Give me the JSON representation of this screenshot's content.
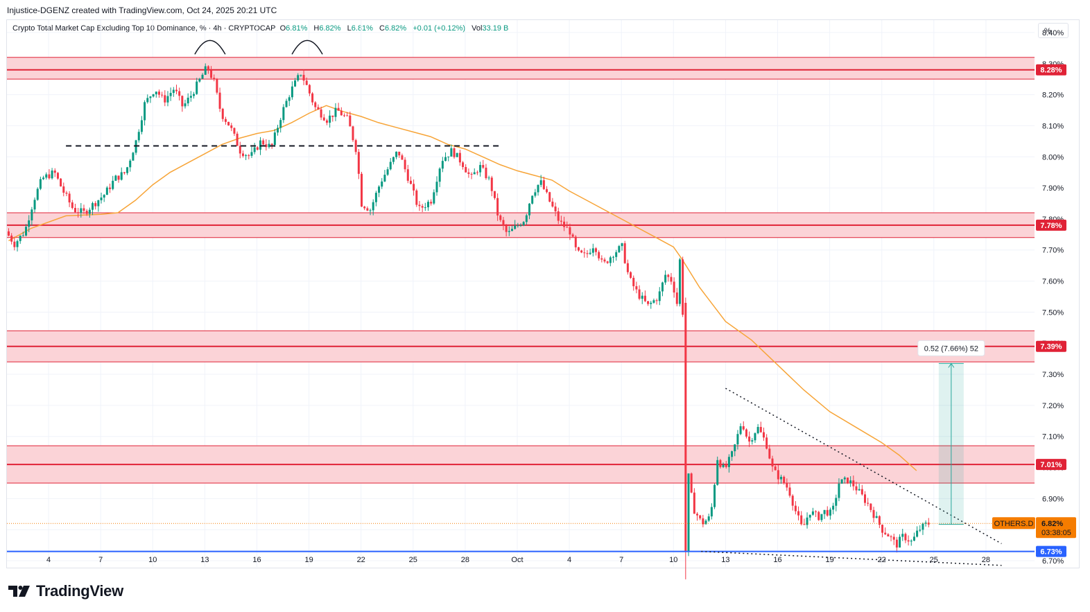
{
  "header": {
    "attribution": "Injustice-DGENZ created with TradingView.com, Oct 24, 2025 20:21 UTC"
  },
  "legend": {
    "symbol_title": "Crypto Total Market Cap Excluding Top 10 Dominance, % · 4h · CRYPTOCAP",
    "o_label": "O",
    "o_value": "6.81%",
    "h_label": "H",
    "h_value": "6.82%",
    "l_label": "L",
    "l_value": "6.81%",
    "c_label": "C",
    "c_value": "6.82%",
    "change": "+0.01 (+0.12%)",
    "vol_label": "Vol",
    "vol_value": "33.19 B"
  },
  "scale_unit": "%",
  "symbol_tag": "OTHERS.D",
  "last_price_label": "6.82%",
  "countdown": "03:38:05",
  "measure_label": "0.52 (7.66%) 52",
  "brand": "TradingView",
  "colors": {
    "up": "#089981",
    "down": "#f23645",
    "zone_fill": "#fbd3d7",
    "zone_line": "#e02236",
    "support": "#2962ff",
    "ma": "#f7a437",
    "measure": "#26a69a",
    "last_price": "#f57c00"
  },
  "chart_data": {
    "type": "candlestick",
    "timeframe": "4h",
    "y_axis": {
      "ticks": [
        "8.40%",
        "8.30%",
        "8.20%",
        "8.10%",
        "8.00%",
        "7.90%",
        "7.80%",
        "7.70%",
        "7.60%",
        "7.50%",
        "7.40%",
        "7.30%",
        "7.20%",
        "7.10%",
        "7.00%",
        "6.90%",
        "6.80%",
        "6.70%"
      ],
      "range": [
        6.68,
        8.44
      ]
    },
    "x_axis": {
      "ticks": [
        {
          "label": "4",
          "day": 4
        },
        {
          "label": "7",
          "day": 7
        },
        {
          "label": "10",
          "day": 10
        },
        {
          "label": "13",
          "day": 13
        },
        {
          "label": "16",
          "day": 16
        },
        {
          "label": "19",
          "day": 19
        },
        {
          "label": "22",
          "day": 22
        },
        {
          "label": "25",
          "day": 25
        },
        {
          "label": "28",
          "day": 28
        },
        {
          "label": "Oct",
          "day": 31
        },
        {
          "label": "4",
          "day": 34
        },
        {
          "label": "7",
          "day": 37
        },
        {
          "label": "10",
          "day": 40
        },
        {
          "label": "13",
          "day": 43
        },
        {
          "label": "16",
          "day": 46
        },
        {
          "label": "19",
          "day": 49
        },
        {
          "label": "22",
          "day": 52
        },
        {
          "label": "25",
          "day": 55
        },
        {
          "label": "28",
          "day": 58
        }
      ],
      "range_days": [
        1.6,
        60.8
      ]
    },
    "resistance_zones": [
      {
        "level": 8.28,
        "label": "8.28%",
        "top": 8.32,
        "bottom": 8.25
      },
      {
        "level": 7.78,
        "label": "7.78%",
        "top": 7.82,
        "bottom": 7.74
      },
      {
        "level": 7.39,
        "label": "7.39%",
        "top": 7.44,
        "bottom": 7.34
      },
      {
        "level": 7.01,
        "label": "7.01%",
        "top": 7.07,
        "bottom": 6.95
      }
    ],
    "support": {
      "level": 6.73,
      "label": "6.73%"
    },
    "last_price": 6.82,
    "neckline": {
      "from_day": 5,
      "to_day": 30,
      "level": 8.035
    },
    "triangle": {
      "upper": [
        [
          43.0,
          7.255
        ],
        [
          58.9,
          6.755
        ]
      ],
      "lower": [
        [
          41.6,
          6.73
        ],
        [
          58.9,
          6.685
        ]
      ]
    },
    "measure": {
      "day": 56.0,
      "from": 6.817,
      "to": 7.335,
      "label": "0.52 (7.66%) 52"
    },
    "moving_average": [
      [
        1.7,
        7.73
      ],
      [
        3,
        7.77
      ],
      [
        5,
        7.81
      ],
      [
        7,
        7.815
      ],
      [
        8,
        7.82
      ],
      [
        9,
        7.86
      ],
      [
        10,
        7.91
      ],
      [
        11,
        7.95
      ],
      [
        12,
        7.98
      ],
      [
        13,
        8.01
      ],
      [
        14,
        8.04
      ],
      [
        15,
        8.06
      ],
      [
        16,
        8.075
      ],
      [
        17,
        8.085
      ],
      [
        18,
        8.11
      ],
      [
        19,
        8.14
      ],
      [
        20,
        8.165
      ],
      [
        21,
        8.145
      ],
      [
        22,
        8.13
      ],
      [
        23,
        8.11
      ],
      [
        24,
        8.095
      ],
      [
        25,
        8.08
      ],
      [
        26,
        8.065
      ],
      [
        27,
        8.04
      ],
      [
        28,
        8.025
      ],
      [
        29,
        8.0
      ],
      [
        30,
        7.975
      ],
      [
        31,
        7.955
      ],
      [
        32,
        7.94
      ],
      [
        33,
        7.925
      ],
      [
        34,
        7.89
      ],
      [
        35,
        7.86
      ],
      [
        36,
        7.83
      ],
      [
        37,
        7.8
      ],
      [
        38,
        7.77
      ],
      [
        39,
        7.74
      ],
      [
        40,
        7.71
      ],
      [
        40.5,
        7.67
      ],
      [
        41.5,
        7.58
      ],
      [
        43,
        7.47
      ],
      [
        44.5,
        7.41
      ],
      [
        46,
        7.33
      ],
      [
        47.5,
        7.25
      ],
      [
        49,
        7.18
      ],
      [
        50.5,
        7.13
      ],
      [
        52,
        7.08
      ],
      [
        53,
        7.04
      ],
      [
        54,
        6.99
      ]
    ],
    "anchors": [
      [
        1.7,
        7.76
      ],
      [
        2.2,
        7.72
      ],
      [
        2.8,
        7.76
      ],
      [
        3.3,
        7.86
      ],
      [
        3.8,
        7.93
      ],
      [
        4.5,
        7.95
      ],
      [
        5.0,
        7.89
      ],
      [
        5.6,
        7.83
      ],
      [
        6.2,
        7.82
      ],
      [
        6.8,
        7.85
      ],
      [
        7.4,
        7.88
      ],
      [
        8.0,
        7.93
      ],
      [
        8.6,
        7.95
      ],
      [
        9.2,
        8.05
      ],
      [
        9.7,
        8.17
      ],
      [
        10.3,
        8.22
      ],
      [
        10.8,
        8.18
      ],
      [
        11.4,
        8.22
      ],
      [
        11.9,
        8.16
      ],
      [
        12.4,
        8.2
      ],
      [
        12.8,
        8.24
      ],
      [
        13.3,
        8.29
      ],
      [
        13.7,
        8.24
      ],
      [
        14.1,
        8.14
      ],
      [
        14.6,
        8.1
      ],
      [
        15.2,
        8.02
      ],
      [
        15.8,
        8.0
      ],
      [
        16.4,
        8.05
      ],
      [
        17.0,
        8.03
      ],
      [
        17.6,
        8.14
      ],
      [
        18.1,
        8.21
      ],
      [
        18.7,
        8.27
      ],
      [
        19.1,
        8.22
      ],
      [
        19.5,
        8.16
      ],
      [
        20.2,
        8.12
      ],
      [
        20.8,
        8.15
      ],
      [
        21.4,
        8.12
      ],
      [
        21.9,
        8.02
      ],
      [
        22.2,
        7.85
      ],
      [
        22.7,
        7.83
      ],
      [
        23.3,
        7.92
      ],
      [
        23.8,
        7.97
      ],
      [
        24.3,
        8.02
      ],
      [
        24.9,
        7.93
      ],
      [
        25.5,
        7.83
      ],
      [
        26.2,
        7.86
      ],
      [
        26.8,
        7.99
      ],
      [
        27.4,
        8.02
      ],
      [
        28.0,
        7.98
      ],
      [
        28.5,
        7.93
      ],
      [
        29.0,
        7.97
      ],
      [
        29.6,
        7.92
      ],
      [
        30.1,
        7.8
      ],
      [
        30.6,
        7.75
      ],
      [
        31.2,
        7.78
      ],
      [
        31.6,
        7.8
      ],
      [
        32.0,
        7.88
      ],
      [
        32.5,
        7.92
      ],
      [
        33.0,
        7.86
      ],
      [
        33.6,
        7.79
      ],
      [
        34.2,
        7.76
      ],
      [
        34.6,
        7.69
      ],
      [
        35.1,
        7.68
      ],
      [
        35.6,
        7.72
      ],
      [
        36.1,
        7.65
      ],
      [
        36.7,
        7.69
      ],
      [
        37.2,
        7.71
      ],
      [
        37.6,
        7.61
      ],
      [
        38.1,
        7.56
      ],
      [
        38.7,
        7.52
      ],
      [
        39.3,
        7.55
      ],
      [
        39.7,
        7.62
      ],
      [
        40.1,
        7.6
      ],
      [
        40.4,
        7.52
      ],
      [
        40.6,
        7.74
      ],
      [
        40.9,
        7.02
      ],
      [
        41.3,
        6.87
      ],
      [
        41.8,
        6.82
      ],
      [
        42.3,
        6.84
      ],
      [
        42.7,
        7.03
      ],
      [
        43.1,
        6.99
      ],
      [
        43.6,
        7.05
      ],
      [
        44.1,
        7.15
      ],
      [
        44.5,
        7.08
      ],
      [
        45.0,
        7.13
      ],
      [
        45.5,
        7.08
      ],
      [
        45.9,
        6.99
      ],
      [
        46.4,
        6.96
      ],
      [
        46.8,
        6.93
      ],
      [
        47.2,
        6.86
      ],
      [
        47.6,
        6.8
      ],
      [
        48.0,
        6.86
      ],
      [
        48.5,
        6.84
      ],
      [
        48.9,
        6.86
      ],
      [
        49.3,
        6.85
      ],
      [
        49.7,
        6.95
      ],
      [
        50.2,
        6.96
      ],
      [
        50.6,
        6.94
      ],
      [
        51.0,
        6.91
      ],
      [
        51.4,
        6.88
      ],
      [
        51.8,
        6.84
      ],
      [
        52.2,
        6.8
      ],
      [
        52.6,
        6.78
      ],
      [
        53.0,
        6.75
      ],
      [
        53.4,
        6.78
      ],
      [
        53.9,
        6.76
      ],
      [
        54.3,
        6.8
      ],
      [
        54.8,
        6.82
      ]
    ],
    "last_candle": {
      "o": 6.81,
      "h": 6.82,
      "l": 6.81,
      "c": 6.82
    }
  }
}
